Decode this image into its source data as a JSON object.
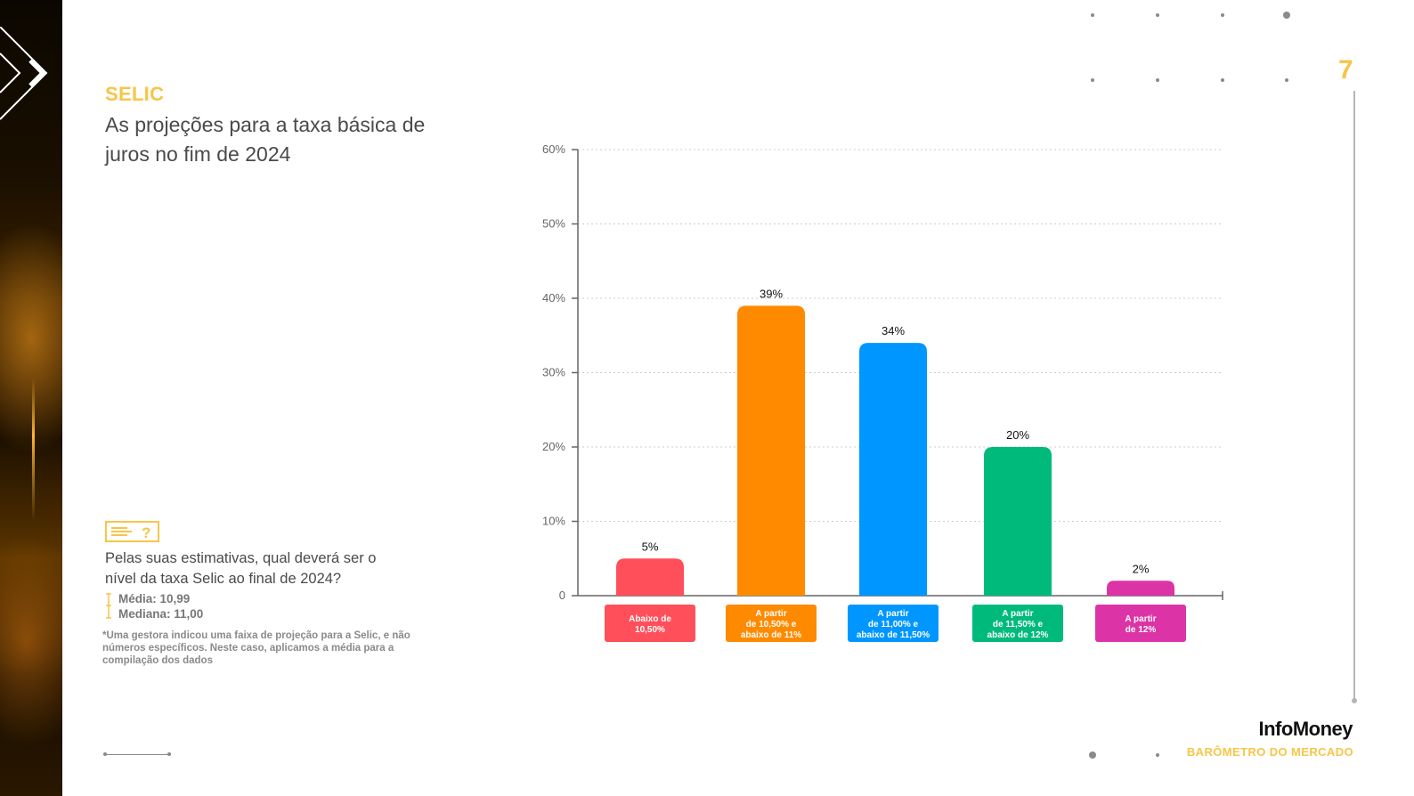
{
  "page": {
    "number": "7"
  },
  "header": {
    "section": "SELIC",
    "title": "As projeções para a taxa básica de juros no fim de 2024"
  },
  "question": {
    "text": "Pelas suas estimativas, qual deverá ser o nível da taxa Selic ao final de 2024?",
    "stats": [
      {
        "text": "Média: 10,99"
      },
      {
        "text": "Mediana: 11,00"
      }
    ],
    "footnote": "*Uma gestora indicou uma faixa de projeção para a Selic, e não números específicos. Neste caso, aplicamos a média para a compilação dos dados"
  },
  "brand": {
    "name": "InfoMoney",
    "subtitle": "BARÔMETRO DO MERCADO"
  },
  "colors": {
    "accent": "#f7c548",
    "gridline": "#cccccc",
    "axis": "#666666"
  },
  "icons": {
    "strip": "chevron-icon",
    "question": "question-box-icon"
  },
  "chart_data": {
    "type": "bar",
    "categories": [
      [
        "Abaixo de",
        "10,50%"
      ],
      [
        "A partir",
        "de 10,50% e",
        "abaixo de 11%"
      ],
      [
        "A partir",
        "de 11,00% e",
        "abaixo de 11,50%"
      ],
      [
        "A partir",
        "de 11,50% e",
        "abaixo de 12%"
      ],
      [
        "A partir",
        "de 12%"
      ]
    ],
    "values": [
      5,
      39,
      34,
      20,
      2
    ],
    "data_labels": [
      "5%",
      "39%",
      "34%",
      "20%",
      "2%"
    ],
    "colors": [
      "#ff4f5a",
      "#ff8a00",
      "#0096ff",
      "#00ba7c",
      "#dc34a6"
    ],
    "ylim": [
      0,
      60
    ],
    "yticks": [
      0,
      10,
      20,
      30,
      40,
      50,
      60
    ],
    "ytick_labels": [
      "0",
      "10%",
      "20%",
      "30%",
      "40%",
      "50%",
      "60%"
    ],
    "grid": true,
    "title": "",
    "xlabel": "",
    "ylabel": ""
  }
}
